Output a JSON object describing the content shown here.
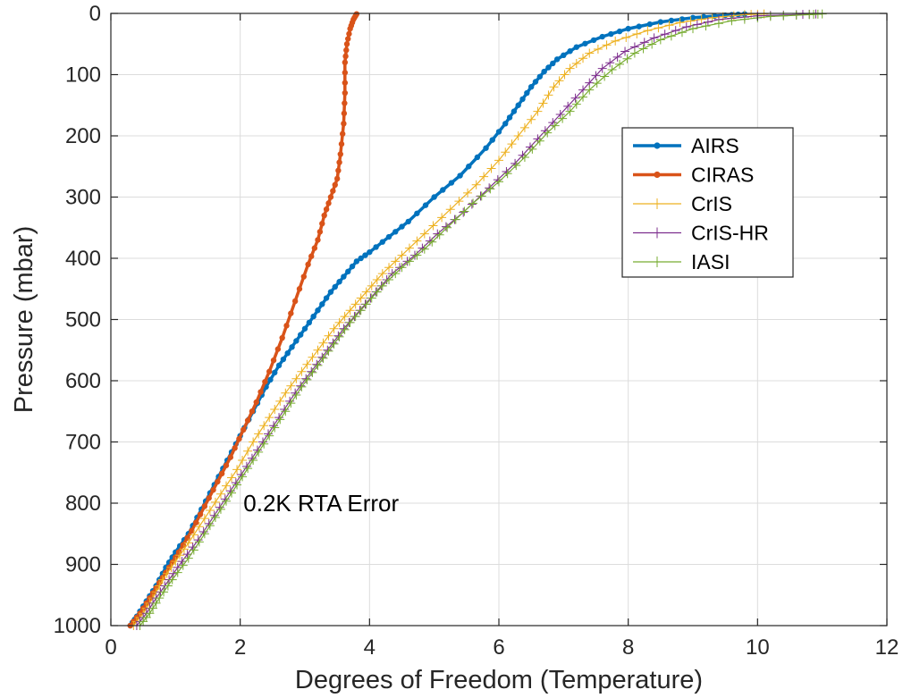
{
  "chart_data": {
    "type": "line",
    "xlabel": "Degrees of Freedom (Temperature)",
    "ylabel": "Pressure (mbar)",
    "xlim": [
      0,
      12
    ],
    "ylim": [
      0,
      1000
    ],
    "y_reversed": true,
    "xticks": [
      0,
      2,
      4,
      6,
      8,
      10,
      12
    ],
    "yticks": [
      0,
      100,
      200,
      300,
      400,
      500,
      600,
      700,
      800,
      900,
      1000
    ],
    "grid": true,
    "legend_position": "upper-right",
    "annotation": {
      "text": "0.2K RTA Error",
      "x": 2.05,
      "y": 800
    },
    "series": [
      {
        "name": "AIRS",
        "color": "#0072BD",
        "marker": "dot",
        "linewidth": 3.5,
        "points": [
          [
            0.3,
            1000
          ],
          [
            0.4,
            985
          ],
          [
            0.55,
            960
          ],
          [
            0.7,
            935
          ],
          [
            0.85,
            905
          ],
          [
            1.0,
            880
          ],
          [
            1.2,
            850
          ],
          [
            1.4,
            810
          ],
          [
            1.6,
            770
          ],
          [
            1.8,
            730
          ],
          [
            2.0,
            690
          ],
          [
            2.2,
            650
          ],
          [
            2.4,
            610
          ],
          [
            2.6,
            575
          ],
          [
            2.8,
            545
          ],
          [
            3.0,
            515
          ],
          [
            3.2,
            485
          ],
          [
            3.4,
            455
          ],
          [
            3.6,
            430
          ],
          [
            3.8,
            405
          ],
          [
            4.0,
            390
          ],
          [
            4.3,
            365
          ],
          [
            4.6,
            340
          ],
          [
            5.0,
            300
          ],
          [
            5.4,
            265
          ],
          [
            5.8,
            220
          ],
          [
            6.1,
            180
          ],
          [
            6.3,
            150
          ],
          [
            6.5,
            120
          ],
          [
            6.7,
            95
          ],
          [
            6.9,
            75
          ],
          [
            7.2,
            55
          ],
          [
            7.6,
            38
          ],
          [
            8.0,
            25
          ],
          [
            8.5,
            14
          ],
          [
            9.0,
            7
          ],
          [
            9.5,
            3
          ],
          [
            9.8,
            1
          ]
        ]
      },
      {
        "name": "CIRAS",
        "color": "#D95319",
        "marker": "dot",
        "linewidth": 3.5,
        "points": [
          [
            0.3,
            1000
          ],
          [
            0.45,
            980
          ],
          [
            0.6,
            955
          ],
          [
            0.75,
            930
          ],
          [
            0.9,
            905
          ],
          [
            1.05,
            880
          ],
          [
            1.25,
            845
          ],
          [
            1.45,
            805
          ],
          [
            1.65,
            765
          ],
          [
            1.85,
            725
          ],
          [
            2.05,
            680
          ],
          [
            2.25,
            635
          ],
          [
            2.45,
            585
          ],
          [
            2.65,
            530
          ],
          [
            2.85,
            470
          ],
          [
            3.05,
            410
          ],
          [
            3.2,
            370
          ],
          [
            3.3,
            330
          ],
          [
            3.4,
            300
          ],
          [
            3.5,
            270
          ],
          [
            3.55,
            230
          ],
          [
            3.6,
            180
          ],
          [
            3.62,
            130
          ],
          [
            3.62,
            80
          ],
          [
            3.65,
            50
          ],
          [
            3.7,
            25
          ],
          [
            3.75,
            10
          ],
          [
            3.8,
            1
          ]
        ]
      },
      {
        "name": "CrIS",
        "color": "#EDB120",
        "marker": "plus",
        "linewidth": 1.2,
        "points": [
          [
            0.35,
            1000
          ],
          [
            0.5,
            980
          ],
          [
            0.65,
            955
          ],
          [
            0.8,
            925
          ],
          [
            1.0,
            895
          ],
          [
            1.2,
            865
          ],
          [
            1.45,
            825
          ],
          [
            1.7,
            785
          ],
          [
            1.95,
            745
          ],
          [
            2.2,
            700
          ],
          [
            2.45,
            660
          ],
          [
            2.7,
            620
          ],
          [
            2.95,
            585
          ],
          [
            3.2,
            550
          ],
          [
            3.45,
            515
          ],
          [
            3.7,
            485
          ],
          [
            3.95,
            455
          ],
          [
            4.2,
            425
          ],
          [
            4.5,
            395
          ],
          [
            4.85,
            360
          ],
          [
            5.25,
            320
          ],
          [
            5.65,
            280
          ],
          [
            6.0,
            240
          ],
          [
            6.3,
            200
          ],
          [
            6.6,
            160
          ],
          [
            6.85,
            120
          ],
          [
            7.1,
            90
          ],
          [
            7.4,
            65
          ],
          [
            7.8,
            45
          ],
          [
            8.3,
            28
          ],
          [
            8.8,
            15
          ],
          [
            9.3,
            7
          ],
          [
            9.8,
            2
          ],
          [
            10.1,
            1
          ]
        ]
      },
      {
        "name": "CrIS-HR",
        "color": "#7E2F8E",
        "marker": "plus",
        "linewidth": 1.2,
        "points": [
          [
            0.4,
            1000
          ],
          [
            0.55,
            980
          ],
          [
            0.7,
            955
          ],
          [
            0.9,
            925
          ],
          [
            1.1,
            895
          ],
          [
            1.35,
            860
          ],
          [
            1.6,
            820
          ],
          [
            1.85,
            780
          ],
          [
            2.1,
            740
          ],
          [
            2.35,
            700
          ],
          [
            2.6,
            660
          ],
          [
            2.85,
            620
          ],
          [
            3.1,
            585
          ],
          [
            3.35,
            550
          ],
          [
            3.6,
            515
          ],
          [
            3.85,
            485
          ],
          [
            4.1,
            455
          ],
          [
            4.35,
            425
          ],
          [
            4.7,
            395
          ],
          [
            5.05,
            360
          ],
          [
            5.45,
            325
          ],
          [
            5.85,
            285
          ],
          [
            6.25,
            245
          ],
          [
            6.6,
            205
          ],
          [
            6.95,
            165
          ],
          [
            7.3,
            125
          ],
          [
            7.6,
            90
          ],
          [
            7.95,
            62
          ],
          [
            8.4,
            40
          ],
          [
            8.9,
            22
          ],
          [
            9.4,
            10
          ],
          [
            10.0,
            4
          ],
          [
            10.6,
            2
          ],
          [
            10.9,
            1
          ]
        ]
      },
      {
        "name": "IASI",
        "color": "#77AC30",
        "marker": "plus",
        "linewidth": 1.2,
        "points": [
          [
            0.45,
            1000
          ],
          [
            0.6,
            980
          ],
          [
            0.75,
            955
          ],
          [
            0.95,
            925
          ],
          [
            1.2,
            890
          ],
          [
            1.45,
            850
          ],
          [
            1.7,
            810
          ],
          [
            1.95,
            770
          ],
          [
            2.2,
            730
          ],
          [
            2.45,
            690
          ],
          [
            2.7,
            650
          ],
          [
            2.95,
            610
          ],
          [
            3.2,
            575
          ],
          [
            3.45,
            540
          ],
          [
            3.7,
            505
          ],
          [
            3.95,
            475
          ],
          [
            4.2,
            445
          ],
          [
            4.5,
            415
          ],
          [
            4.85,
            385
          ],
          [
            5.2,
            350
          ],
          [
            5.6,
            310
          ],
          [
            6.0,
            275
          ],
          [
            6.4,
            235
          ],
          [
            6.75,
            195
          ],
          [
            7.1,
            160
          ],
          [
            7.4,
            125
          ],
          [
            7.75,
            92
          ],
          [
            8.1,
            65
          ],
          [
            8.5,
            43
          ],
          [
            9.0,
            25
          ],
          [
            9.6,
            12
          ],
          [
            10.2,
            5
          ],
          [
            10.8,
            2
          ],
          [
            11.0,
            1
          ]
        ]
      }
    ]
  }
}
